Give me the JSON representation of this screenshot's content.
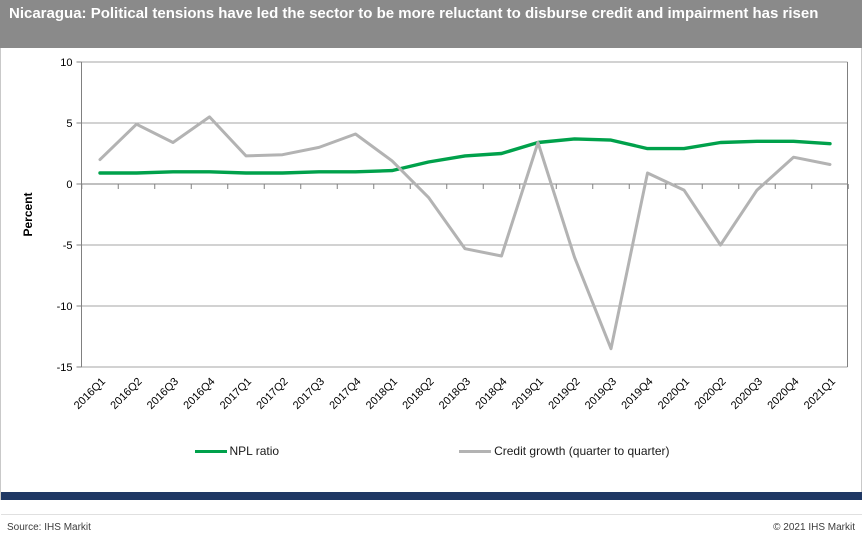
{
  "title_bar": {
    "text": "Nicaragua: Political tensions have led the sector to be more reluctant to disburse credit and impairment has risen"
  },
  "footer": {
    "source": "Source:  IHS Markit",
    "copyright": "© 2021  IHS Markit"
  },
  "colors": {
    "titlebar_bg": "#8a8a8a",
    "npl_green": "#00A14B",
    "credit_gray": "#B3B3B3",
    "gridline": "#A6A6A6",
    "axis": "#808080",
    "bottom_bar_navy": "#1f3864"
  },
  "chart_data": {
    "type": "line",
    "title": "Nicaragua: Political tensions have led the sector to be more reluctant to disburse credit and impairment has risen",
    "xlabel": "",
    "ylabel": "Percent",
    "ylim": [
      -15,
      10
    ],
    "yticks": [
      10,
      5,
      0,
      -5,
      -10,
      -15
    ],
    "grid": "horizontal",
    "legend_position": "bottom",
    "categories": [
      "2016Q1",
      "2016Q2",
      "2016Q3",
      "2016Q4",
      "2017Q1",
      "2017Q2",
      "2017Q3",
      "2017Q4",
      "2018Q1",
      "2018Q2",
      "2018Q3",
      "2018Q4",
      "2019Q1",
      "2019Q2",
      "2019Q3",
      "2019Q4",
      "2020Q1",
      "2020Q2",
      "2020Q3",
      "2020Q4",
      "2021Q1"
    ],
    "series": [
      {
        "name": "NPL ratio",
        "color": "#00A14B",
        "values": [
          0.9,
          0.9,
          1.0,
          1.0,
          0.9,
          0.9,
          1.0,
          1.0,
          1.1,
          1.8,
          2.3,
          2.5,
          3.4,
          3.7,
          3.6,
          2.9,
          2.9,
          3.4,
          3.5,
          3.5,
          3.3
        ]
      },
      {
        "name": "Credit growth (quarter to quarter)",
        "color": "#B3B3B3",
        "values": [
          2.0,
          4.9,
          3.4,
          5.5,
          2.3,
          2.4,
          3.0,
          4.1,
          1.9,
          -1.1,
          -5.3,
          -5.9,
          3.4,
          -6.0,
          -13.5,
          0.9,
          -0.5,
          -5.0,
          -0.5,
          2.2,
          1.6
        ]
      }
    ]
  }
}
